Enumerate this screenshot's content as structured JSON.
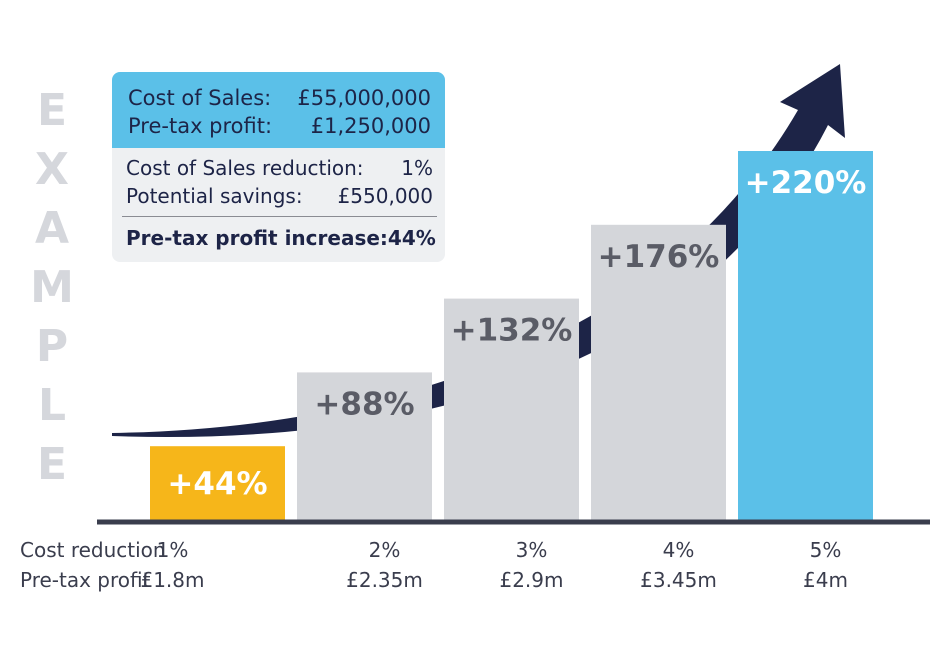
{
  "watermark": [
    "E",
    "X",
    "A",
    "M",
    "P",
    "L",
    "E"
  ],
  "info_box": {
    "cost_of_sales_label": "Cost of Sales:",
    "cost_of_sales_value": "£55,000,000",
    "pretax_profit_label": "Pre-tax profit:",
    "pretax_profit_value": "£1,250,000",
    "reduction_label": "Cost of Sales reduction:",
    "reduction_value": "1%",
    "savings_label": "Potential savings:",
    "savings_value": "£550,000",
    "increase_label": "Pre-tax profit increase:",
    "increase_value": "44%"
  },
  "colors": {
    "yellow": "#f6b61a",
    "grey": "#d4d6da",
    "blue": "#5bc0e8",
    "navy": "#1d2447",
    "label_dark": "#5a5c66",
    "label_white": "#ffffff",
    "axis": "#3a3d4d"
  },
  "chart_data": {
    "type": "bar",
    "categories": [
      "1%",
      "2%",
      "3%",
      "4%",
      "5%"
    ],
    "values": [
      44,
      88,
      132,
      176,
      220
    ],
    "data_labels": [
      "+44%",
      "+88%",
      "+132%",
      "+176%",
      "+220%"
    ],
    "pretax_profit": [
      "£1.8m",
      "£2.35m",
      "£2.9m",
      "£3.45m",
      "£4m"
    ],
    "row_labels": {
      "cost_reduction": "Cost reduction",
      "pretax_profit": "Pre-tax profit"
    },
    "ylim": [
      0,
      220
    ],
    "bar_colors": [
      "yellow",
      "grey",
      "grey",
      "grey",
      "blue"
    ],
    "label_colors": [
      "label_white",
      "label_dark",
      "label_dark",
      "label_dark",
      "label_white"
    ]
  }
}
